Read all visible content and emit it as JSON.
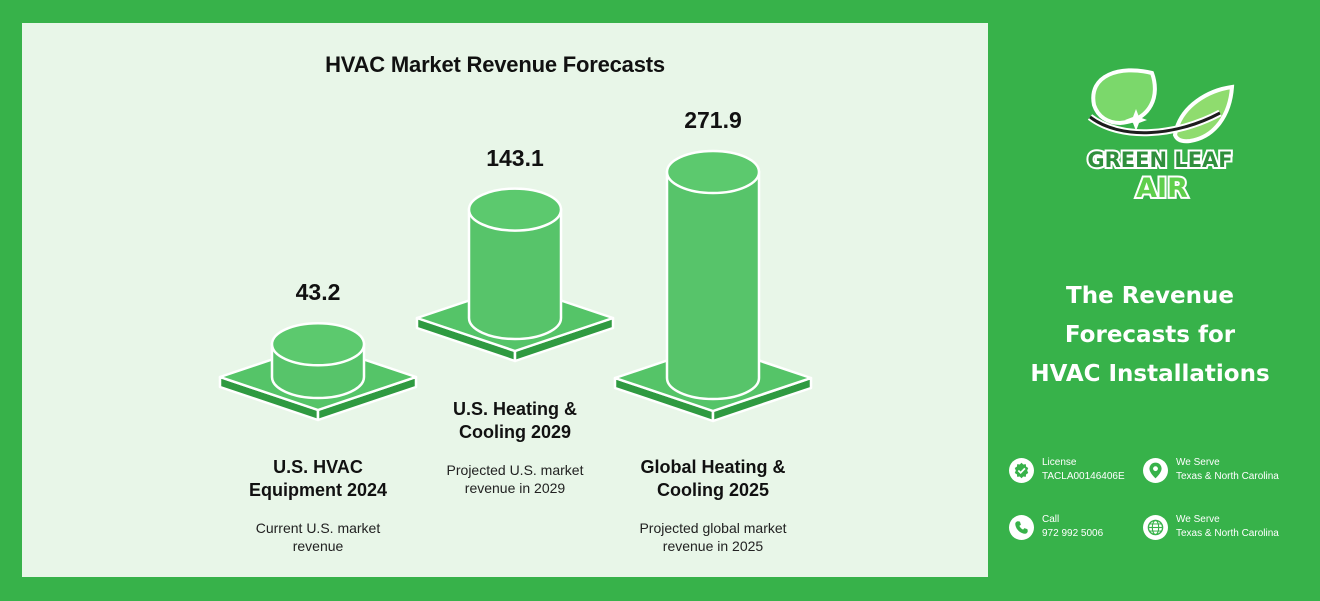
{
  "chart_data": {
    "type": "bar",
    "title": "HVAC Market Revenue Forecasts",
    "categories": [
      "U.S. HVAC Equipment 2024",
      "U.S. Heating & Cooling 2029",
      "Global Heating & Cooling 2025"
    ],
    "category_lines": [
      [
        "U.S. HVAC",
        "Equipment 2024"
      ],
      [
        "U.S. Heating &",
        "Cooling 2029"
      ],
      [
        "Global Heating &",
        "Cooling 2025"
      ]
    ],
    "descriptions": [
      [
        "Current U.S. market",
        "revenue"
      ],
      [
        "Projected U.S. market",
        "revenue in 2029"
      ],
      [
        "Projected global market",
        "revenue in 2025"
      ]
    ],
    "values": [
      43.2,
      143.1,
      271.9
    ],
    "value_labels": [
      "43.2",
      "143.1",
      "271.9"
    ],
    "style": "3D cylinders on square bases",
    "colors": {
      "cylinder_side": "#57c46a",
      "cylinder_top": "#5cc96e",
      "base_top": "#55c468",
      "base_side": "#2f9a41",
      "outline": "#ffffff"
    }
  },
  "brand": {
    "name_line1": "GREEN LEAF",
    "name_line2": "AIR",
    "primary_color": "#37b24a",
    "panel_color": "#e8f6e8"
  },
  "sidebar": {
    "heading_lines": [
      "The Revenue",
      "Forecasts for",
      "HVAC Installations"
    ],
    "contacts": [
      {
        "icon": "badge-check-icon",
        "label": "License",
        "value": "TACLA00146406E"
      },
      {
        "icon": "location-pin-icon",
        "label": "We Serve",
        "value": "Texas & North Carolina"
      },
      {
        "icon": "phone-icon",
        "label": "Call",
        "value": "972 992 5006"
      },
      {
        "icon": "globe-icon",
        "label": "We Serve",
        "value": "Texas & North Carolina"
      }
    ]
  }
}
